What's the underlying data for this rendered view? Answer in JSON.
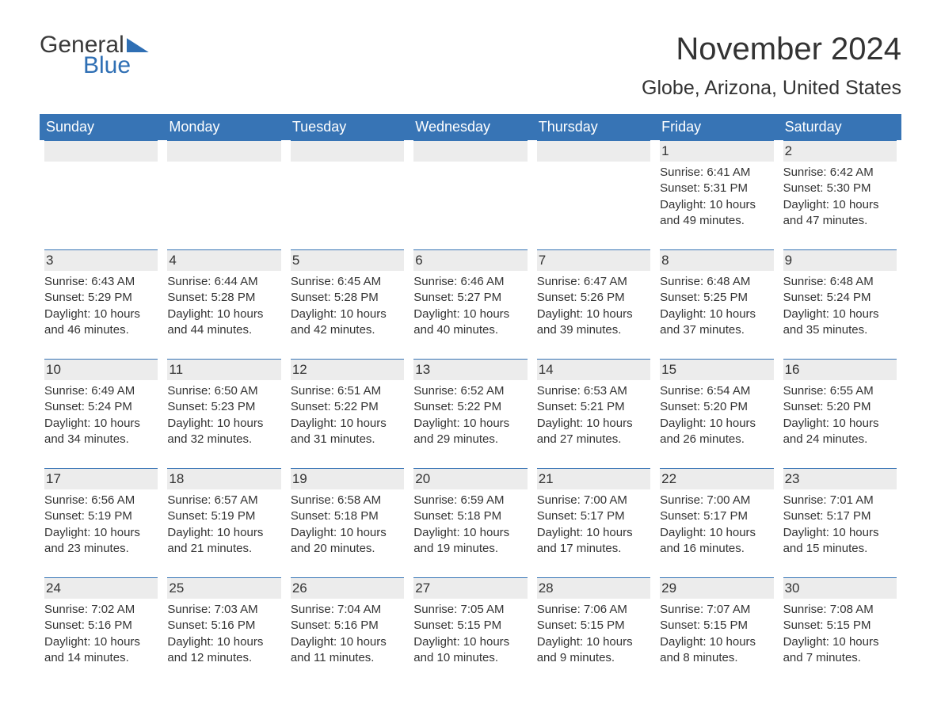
{
  "logo": {
    "text1": "General",
    "text2": "Blue",
    "accent_color": "#2f6fb4"
  },
  "title": "November 2024",
  "location": "Globe, Arizona, United States",
  "colors": {
    "header_bg": "#3774b5",
    "header_text": "#ffffff",
    "daynum_bg": "#ececec",
    "daynum_border": "#3774b5",
    "body_text": "#333333",
    "page_bg": "#ffffff"
  },
  "typography": {
    "title_fontsize": 40,
    "location_fontsize": 25,
    "header_fontsize": 18,
    "daynum_fontsize": 17,
    "cell_fontsize": 15
  },
  "day_names": [
    "Sunday",
    "Monday",
    "Tuesday",
    "Wednesday",
    "Thursday",
    "Friday",
    "Saturday"
  ],
  "weeks": [
    [
      null,
      null,
      null,
      null,
      null,
      {
        "day": "1",
        "sunrise": "Sunrise: 6:41 AM",
        "sunset": "Sunset: 5:31 PM",
        "daylight": "Daylight: 10 hours and 49 minutes."
      },
      {
        "day": "2",
        "sunrise": "Sunrise: 6:42 AM",
        "sunset": "Sunset: 5:30 PM",
        "daylight": "Daylight: 10 hours and 47 minutes."
      }
    ],
    [
      {
        "day": "3",
        "sunrise": "Sunrise: 6:43 AM",
        "sunset": "Sunset: 5:29 PM",
        "daylight": "Daylight: 10 hours and 46 minutes."
      },
      {
        "day": "4",
        "sunrise": "Sunrise: 6:44 AM",
        "sunset": "Sunset: 5:28 PM",
        "daylight": "Daylight: 10 hours and 44 minutes."
      },
      {
        "day": "5",
        "sunrise": "Sunrise: 6:45 AM",
        "sunset": "Sunset: 5:28 PM",
        "daylight": "Daylight: 10 hours and 42 minutes."
      },
      {
        "day": "6",
        "sunrise": "Sunrise: 6:46 AM",
        "sunset": "Sunset: 5:27 PM",
        "daylight": "Daylight: 10 hours and 40 minutes."
      },
      {
        "day": "7",
        "sunrise": "Sunrise: 6:47 AM",
        "sunset": "Sunset: 5:26 PM",
        "daylight": "Daylight: 10 hours and 39 minutes."
      },
      {
        "day": "8",
        "sunrise": "Sunrise: 6:48 AM",
        "sunset": "Sunset: 5:25 PM",
        "daylight": "Daylight: 10 hours and 37 minutes."
      },
      {
        "day": "9",
        "sunrise": "Sunrise: 6:48 AM",
        "sunset": "Sunset: 5:24 PM",
        "daylight": "Daylight: 10 hours and 35 minutes."
      }
    ],
    [
      {
        "day": "10",
        "sunrise": "Sunrise: 6:49 AM",
        "sunset": "Sunset: 5:24 PM",
        "daylight": "Daylight: 10 hours and 34 minutes."
      },
      {
        "day": "11",
        "sunrise": "Sunrise: 6:50 AM",
        "sunset": "Sunset: 5:23 PM",
        "daylight": "Daylight: 10 hours and 32 minutes."
      },
      {
        "day": "12",
        "sunrise": "Sunrise: 6:51 AM",
        "sunset": "Sunset: 5:22 PM",
        "daylight": "Daylight: 10 hours and 31 minutes."
      },
      {
        "day": "13",
        "sunrise": "Sunrise: 6:52 AM",
        "sunset": "Sunset: 5:22 PM",
        "daylight": "Daylight: 10 hours and 29 minutes."
      },
      {
        "day": "14",
        "sunrise": "Sunrise: 6:53 AM",
        "sunset": "Sunset: 5:21 PM",
        "daylight": "Daylight: 10 hours and 27 minutes."
      },
      {
        "day": "15",
        "sunrise": "Sunrise: 6:54 AM",
        "sunset": "Sunset: 5:20 PM",
        "daylight": "Daylight: 10 hours and 26 minutes."
      },
      {
        "day": "16",
        "sunrise": "Sunrise: 6:55 AM",
        "sunset": "Sunset: 5:20 PM",
        "daylight": "Daylight: 10 hours and 24 minutes."
      }
    ],
    [
      {
        "day": "17",
        "sunrise": "Sunrise: 6:56 AM",
        "sunset": "Sunset: 5:19 PM",
        "daylight": "Daylight: 10 hours and 23 minutes."
      },
      {
        "day": "18",
        "sunrise": "Sunrise: 6:57 AM",
        "sunset": "Sunset: 5:19 PM",
        "daylight": "Daylight: 10 hours and 21 minutes."
      },
      {
        "day": "19",
        "sunrise": "Sunrise: 6:58 AM",
        "sunset": "Sunset: 5:18 PM",
        "daylight": "Daylight: 10 hours and 20 minutes."
      },
      {
        "day": "20",
        "sunrise": "Sunrise: 6:59 AM",
        "sunset": "Sunset: 5:18 PM",
        "daylight": "Daylight: 10 hours and 19 minutes."
      },
      {
        "day": "21",
        "sunrise": "Sunrise: 7:00 AM",
        "sunset": "Sunset: 5:17 PM",
        "daylight": "Daylight: 10 hours and 17 minutes."
      },
      {
        "day": "22",
        "sunrise": "Sunrise: 7:00 AM",
        "sunset": "Sunset: 5:17 PM",
        "daylight": "Daylight: 10 hours and 16 minutes."
      },
      {
        "day": "23",
        "sunrise": "Sunrise: 7:01 AM",
        "sunset": "Sunset: 5:17 PM",
        "daylight": "Daylight: 10 hours and 15 minutes."
      }
    ],
    [
      {
        "day": "24",
        "sunrise": "Sunrise: 7:02 AM",
        "sunset": "Sunset: 5:16 PM",
        "daylight": "Daylight: 10 hours and 14 minutes."
      },
      {
        "day": "25",
        "sunrise": "Sunrise: 7:03 AM",
        "sunset": "Sunset: 5:16 PM",
        "daylight": "Daylight: 10 hours and 12 minutes."
      },
      {
        "day": "26",
        "sunrise": "Sunrise: 7:04 AM",
        "sunset": "Sunset: 5:16 PM",
        "daylight": "Daylight: 10 hours and 11 minutes."
      },
      {
        "day": "27",
        "sunrise": "Sunrise: 7:05 AM",
        "sunset": "Sunset: 5:15 PM",
        "daylight": "Daylight: 10 hours and 10 minutes."
      },
      {
        "day": "28",
        "sunrise": "Sunrise: 7:06 AM",
        "sunset": "Sunset: 5:15 PM",
        "daylight": "Daylight: 10 hours and 9 minutes."
      },
      {
        "day": "29",
        "sunrise": "Sunrise: 7:07 AM",
        "sunset": "Sunset: 5:15 PM",
        "daylight": "Daylight: 10 hours and 8 minutes."
      },
      {
        "day": "30",
        "sunrise": "Sunrise: 7:08 AM",
        "sunset": "Sunset: 5:15 PM",
        "daylight": "Daylight: 10 hours and 7 minutes."
      }
    ]
  ]
}
